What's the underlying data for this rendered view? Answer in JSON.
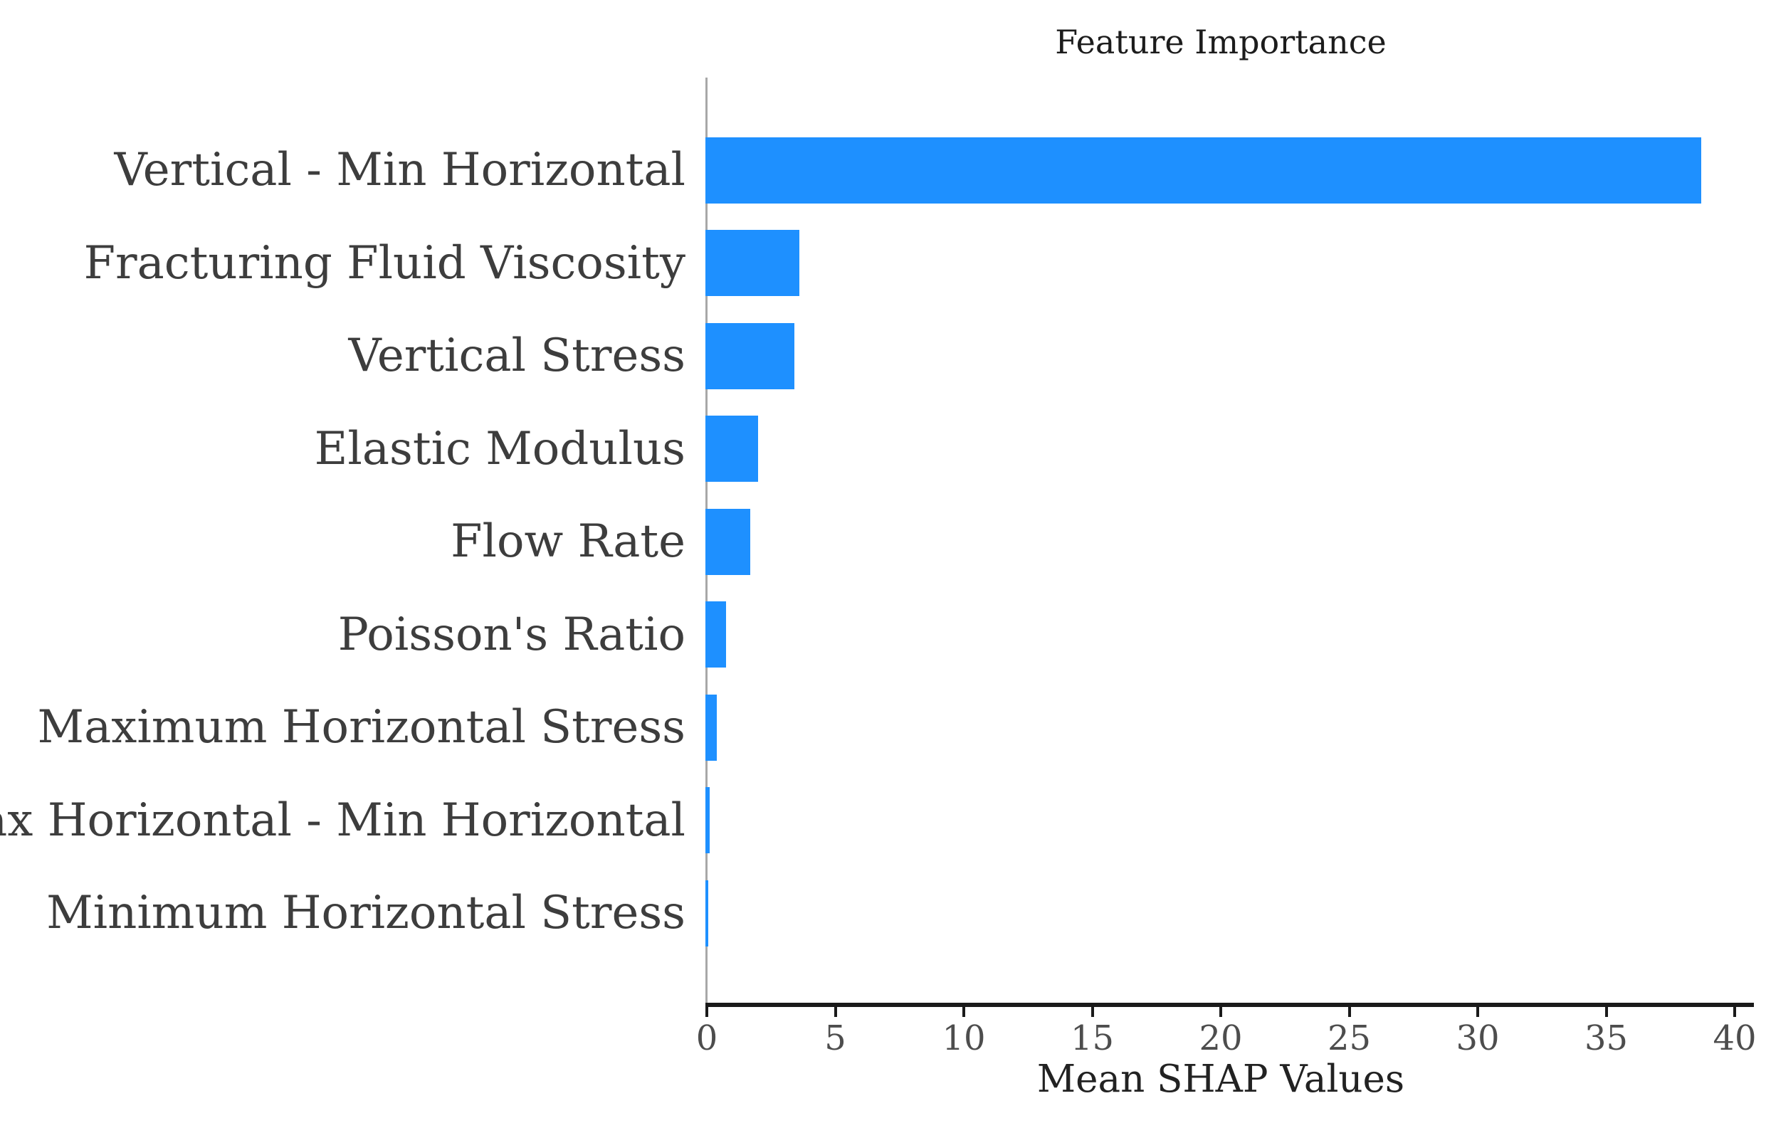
{
  "chart_data": {
    "type": "bar",
    "orientation": "horizontal",
    "title": "Feature Importance",
    "xlabel": "Mean SHAP Values",
    "ylabel": "",
    "categories": [
      "Vertical - Min Horizontal",
      "Fracturing Fluid Viscosity",
      "Vertical Stress",
      "Elastic Modulus",
      "Flow Rate",
      "Poisson's Ratio",
      "Maximum Horizontal Stress",
      "Max Horizontal - Min Horizontal",
      "Minimum Horizontal Stress"
    ],
    "values": [
      38.7,
      3.6,
      3.4,
      2.0,
      1.7,
      0.75,
      0.4,
      0.1,
      0.06
    ],
    "xticks": [
      0,
      5,
      10,
      15,
      20,
      25,
      30,
      35,
      40
    ],
    "xlim": [
      0,
      40.7
    ],
    "grid": false,
    "legend": null,
    "bar_color": "#1E90FF",
    "colors": {
      "bar": "#1E90FF",
      "left_spine": "#a8a8a8",
      "bottom_spine": "#1a1a1a",
      "category_text": "#3d3d3d",
      "tick_text": "#4d4d4d",
      "title_text": "#1c1c1c",
      "background": "#ffffff"
    }
  }
}
